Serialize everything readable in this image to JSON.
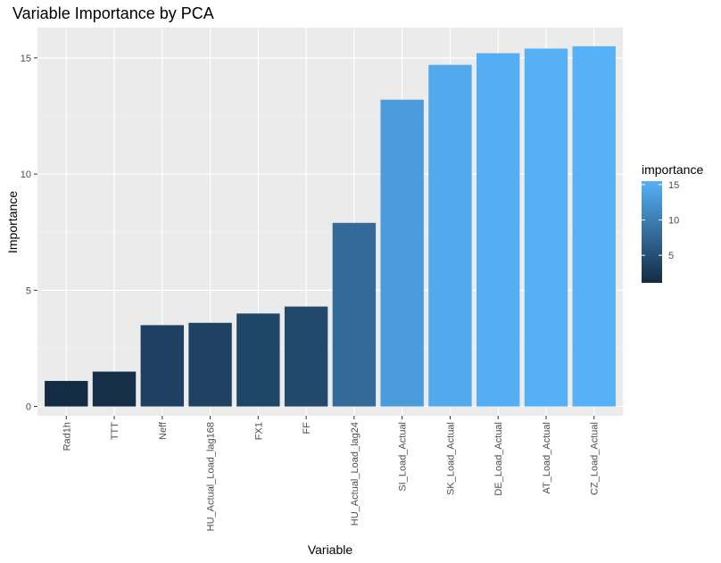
{
  "chart_data": {
    "type": "bar",
    "title": "Variable Importance by PCA",
    "xlabel": "Variable",
    "ylabel": "Importance",
    "categories": [
      "Rad1h",
      "TTT",
      "Neff",
      "HU_Actual_Load_lag168",
      "FX1",
      "FF",
      "HU_Actual_Load_lag24",
      "SI_Load_Actual",
      "SK_Load_Actual",
      "DE_Load_Actual",
      "AT_Load_Actual",
      "CZ_Load_Actual"
    ],
    "values": [
      1.1,
      1.5,
      3.5,
      3.6,
      4.0,
      4.3,
      7.9,
      13.2,
      14.7,
      15.2,
      15.4,
      15.5
    ],
    "ylim": [
      -0.4,
      16.3
    ],
    "yticks": [
      0,
      5,
      10,
      15
    ],
    "grid": true,
    "legend": {
      "title": "importance",
      "position": "right",
      "ticks": [
        5,
        10,
        15
      ],
      "range": [
        1.1,
        15.5
      ],
      "color_low": "#132B43",
      "color_high": "#56B1F7"
    },
    "panel_background": "#EBEBEB"
  }
}
